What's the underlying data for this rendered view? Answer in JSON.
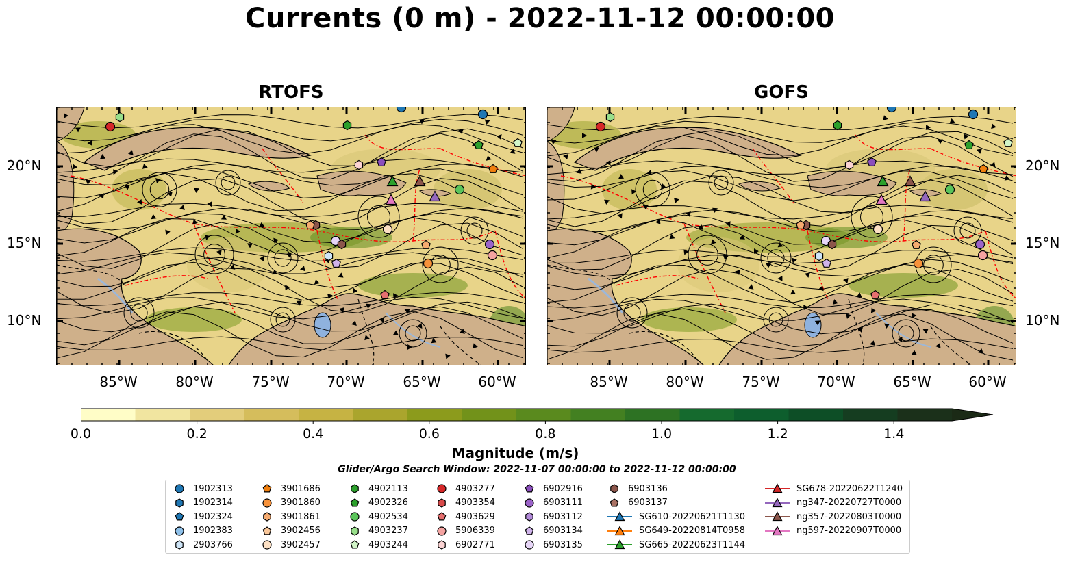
{
  "title": "Currents (0 m) - 2022-11-12 00:00:00",
  "panels": [
    {
      "title": "RTOFS",
      "map_name": "rtofs-map"
    },
    {
      "title": "GOFS",
      "map_name": "gofs-map"
    }
  ],
  "map": {
    "type": "currents-magnitude-map",
    "lon_range": [
      -89,
      -58
    ],
    "lat_range": [
      7,
      24
    ],
    "lat_ticks": [
      "20°N",
      "15°N",
      "10°N"
    ],
    "lon_ticks": [
      "85°W",
      "80°W",
      "75°W",
      "70°W",
      "65°W",
      "60°W"
    ],
    "land_color": "#cfb08a",
    "eez_color": "#ff0000",
    "streamline_color": "#000000"
  },
  "colorbar": {
    "label": "Magnitude (m/s)",
    "ticks": [
      "0.0",
      "0.2",
      "0.4",
      "0.6",
      "0.8",
      "1.0",
      "1.2",
      "1.4"
    ],
    "min": 0.0,
    "max": 1.5,
    "extend": "max",
    "colors": [
      "#fffdc7",
      "#f1e5a0",
      "#e3cd7b",
      "#d5bd5c",
      "#c6b343",
      "#aaa52d",
      "#8c9b1c",
      "#72921a",
      "#5a8a1e",
      "#438021",
      "#2d7223",
      "#156a2e",
      "#0d5e2d",
      "#0d4e26",
      "#153d20",
      "#1b301a"
    ]
  },
  "search_window": "Glider/Argo Search Window: 2022-11-07 00:00:00 to 2022-11-12 00:00:00",
  "legend": {
    "columns": [
      [
        {
          "label": "1902313",
          "marker": "circle",
          "color": "#1f77b4"
        },
        {
          "label": "1902314",
          "marker": "hexagon",
          "color": "#1f77b4"
        },
        {
          "label": "1902324",
          "marker": "pentagon",
          "color": "#1f77b4"
        },
        {
          "label": "1902383",
          "marker": "circle",
          "color": "#8fc1ea"
        },
        {
          "label": "2903766",
          "marker": "hexagon",
          "color": "#cfe5f7"
        }
      ],
      [
        {
          "label": "3901686",
          "marker": "pentagon",
          "color": "#f07f0e"
        },
        {
          "label": "3901860",
          "marker": "circle",
          "color": "#f7923a"
        },
        {
          "label": "3901861",
          "marker": "hexagon",
          "color": "#f6ab70"
        },
        {
          "label": "3902456",
          "marker": "pentagon",
          "color": "#f9c79a"
        },
        {
          "label": "3902457",
          "marker": "circle",
          "color": "#fde1c5"
        }
      ],
      [
        {
          "label": "4902113",
          "marker": "hexagon",
          "color": "#2ca02c"
        },
        {
          "label": "4902326",
          "marker": "pentagon",
          "color": "#2ca02c"
        },
        {
          "label": "4902534",
          "marker": "circle",
          "color": "#5ac45a"
        },
        {
          "label": "4903237",
          "marker": "hexagon",
          "color": "#98df8a"
        },
        {
          "label": "4903244",
          "marker": "pentagon",
          "color": "#d2f5c8"
        }
      ],
      [
        {
          "label": "4903277",
          "marker": "circle",
          "color": "#d62728"
        },
        {
          "label": "4903354",
          "marker": "hexagon",
          "color": "#d84a4a"
        },
        {
          "label": "4903629",
          "marker": "pentagon",
          "color": "#e56f6f"
        },
        {
          "label": "5906339",
          "marker": "circle",
          "color": "#f4a3a1"
        },
        {
          "label": "6902771",
          "marker": "hexagon",
          "color": "#fbd3d3"
        }
      ],
      [
        {
          "label": "6902916",
          "marker": "pentagon",
          "color": "#8c4fbd"
        },
        {
          "label": "6903111",
          "marker": "circle",
          "color": "#9b63c9"
        },
        {
          "label": "6903112",
          "marker": "hexagon",
          "color": "#b28ad8"
        },
        {
          "label": "6903134",
          "marker": "pentagon",
          "color": "#cfb3ea"
        },
        {
          "label": "6903135",
          "marker": "circle",
          "color": "#e7d6f7"
        }
      ],
      [
        {
          "label": "6903136",
          "marker": "hexagon",
          "color": "#8c564b"
        },
        {
          "label": "6903137",
          "marker": "pentagon",
          "color": "#a97264"
        },
        {
          "label": "SG610-20220621T1130",
          "marker": "triangle-line",
          "color": "#1f77b4"
        },
        {
          "label": "SG649-20220814T0958",
          "marker": "triangle-line",
          "color": "#ff7f0e"
        },
        {
          "label": "SG665-20220623T1144",
          "marker": "triangle-line",
          "color": "#2ca02c"
        }
      ],
      [
        {
          "label": "SG678-20220622T1240",
          "marker": "triangle-line",
          "color": "#d62728"
        },
        {
          "label": "ng347-20220727T0000",
          "marker": "triangle-line",
          "color": "#9467bd"
        },
        {
          "label": "ng357-20220803T0000",
          "marker": "triangle-line",
          "color": "#8c564b"
        },
        {
          "label": "ng597-20220907T0000",
          "marker": "triangle-line",
          "color": "#e377c2"
        }
      ]
    ]
  }
}
